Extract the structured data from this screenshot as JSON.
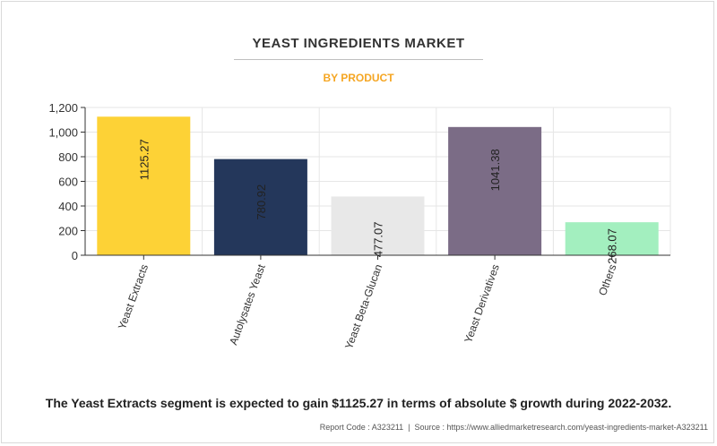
{
  "header": {
    "title": "YEAST INGREDIENTS MARKET",
    "subtitle": "BY PRODUCT"
  },
  "colors": {
    "title": "#333333",
    "subtitle": "#f5a623",
    "grid": "#e6e6e6",
    "axis": "#333333"
  },
  "chart_data": {
    "type": "bar",
    "title": "YEAST INGREDIENTS MARKET",
    "subtitle": "BY PRODUCT",
    "categories": [
      "Yeast Extracts",
      "Autolysates Yeast",
      "Yeast Beta-Glucan",
      "Yeast Derivatives",
      "Others"
    ],
    "values": [
      1125.27,
      780.92,
      477.07,
      1041.38,
      268.07
    ],
    "value_labels": [
      "1125.27",
      "780.92",
      "477.07",
      "1041.38",
      "268.07"
    ],
    "bar_colors": [
      "#fdd236",
      "#24375b",
      "#e8e8e8",
      "#7b6c86",
      "#a3efbf"
    ],
    "yticks": [
      "0",
      "200",
      "400",
      "600",
      "800",
      "1,000",
      "1,200"
    ],
    "ytick_values": [
      0,
      200,
      400,
      600,
      800,
      1000,
      1200
    ],
    "ylim": [
      0,
      1200
    ],
    "grid": true,
    "xlabel": "",
    "ylabel": ""
  },
  "footer": {
    "caption": "The Yeast Extracts segment is expected to gain $1125.27 in terms of absolute $ growth during 2022-2032.",
    "report_code": "Report Code : A323211",
    "source": "Source : https://www.alliedmarketresearch.com/yeast-ingredients-market-A323211"
  }
}
